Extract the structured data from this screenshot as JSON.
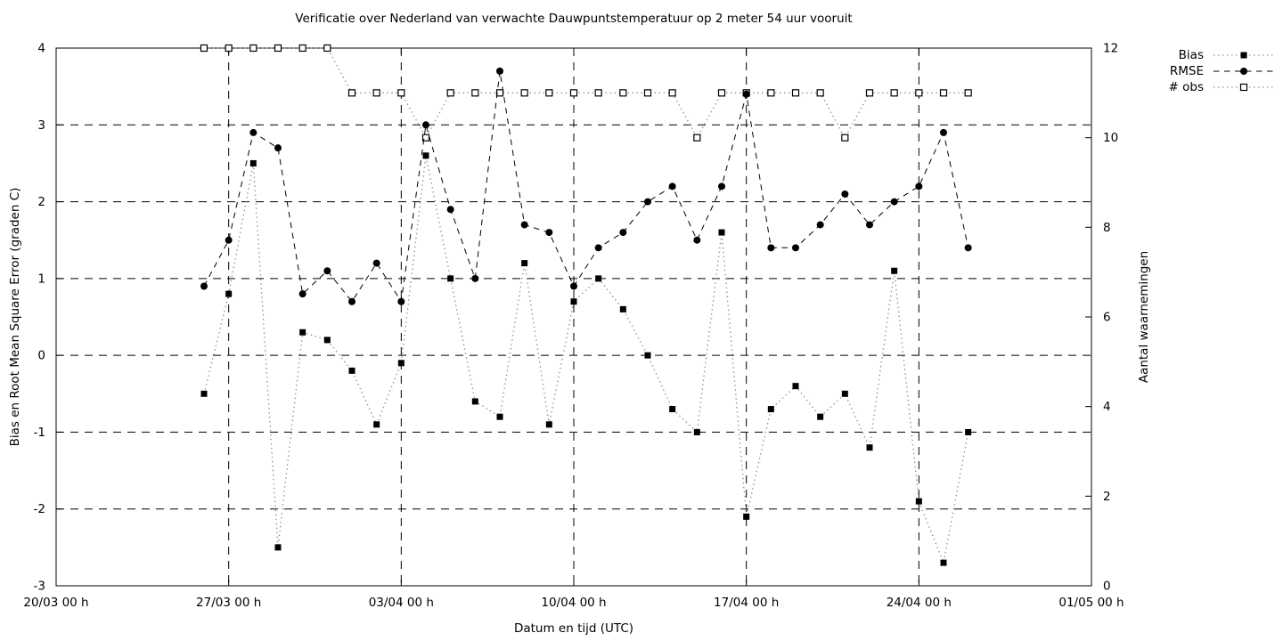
{
  "title": "Verificatie over Nederland van verwachte Dauwpuntstemperatuur op 2 meter 54 uur vooruit",
  "colors": {
    "foreground": "#000000",
    "background": "#ffffff",
    "dotted_series": "#8a8a8a"
  },
  "chart_data": {
    "type": "line",
    "title": "Verificatie over Nederland van verwachte Dauwpuntstemperatuur op 2 meter 54 uur vooruit",
    "grid": true,
    "legend_position": "top-right-outside",
    "x_axis": {
      "label": "Datum en tijd (UTC)",
      "tick_labels": [
        "20/03 00 h",
        "27/03 00 h",
        "03/04 00 h",
        "10/04 00 h",
        "17/04 00 h",
        "24/04 00 h",
        "01/05 00 h"
      ],
      "tick_days": [
        0,
        7,
        14,
        21,
        28,
        35,
        42
      ],
      "range_days": [
        0,
        42
      ]
    },
    "y_left": {
      "label": "Bias en Root Mean Square Error (graden C)",
      "ticks": [
        4,
        3,
        2,
        1,
        0,
        -1,
        -2,
        -3
      ],
      "grid_levels": [
        3,
        2,
        1,
        0,
        -1,
        -2
      ],
      "range": [
        -3,
        4
      ]
    },
    "y_right": {
      "label": "Aantal waarnemingen",
      "ticks": [
        0,
        2,
        4,
        6,
        8,
        10,
        12
      ],
      "range": [
        0,
        12
      ]
    },
    "x_dates": [
      "26/03",
      "27/03",
      "28/03",
      "29/03",
      "30/03",
      "31/03",
      "01/04",
      "02/04",
      "03/04",
      "04/04",
      "05/04",
      "06/04",
      "07/04",
      "08/04",
      "09/04",
      "10/04",
      "11/04",
      "12/04",
      "13/04",
      "14/04",
      "15/04",
      "16/04",
      "17/04",
      "18/04",
      "19/04",
      "20/04",
      "21/04",
      "22/04",
      "23/04",
      "24/04",
      "25/04",
      "26/04"
    ],
    "x_days": [
      6,
      7,
      8,
      9,
      10,
      11,
      12,
      13,
      14,
      15,
      16,
      17,
      18,
      19,
      20,
      21,
      22,
      23,
      24,
      25,
      26,
      27,
      28,
      29,
      30,
      31,
      32,
      33,
      34,
      35,
      36,
      37
    ],
    "series": [
      {
        "name": "Bias",
        "axis": "left",
        "marker": "filled-square",
        "line": "dotted",
        "values": [
          -0.5,
          0.8,
          2.5,
          -2.5,
          0.3,
          0.2,
          -0.2,
          -0.9,
          -0.1,
          2.6,
          1.0,
          -0.6,
          -0.8,
          1.2,
          -0.9,
          0.7,
          1.0,
          0.6,
          0.0,
          -0.7,
          -1.0,
          1.6,
          -2.1,
          -0.7,
          -0.4,
          -0.8,
          -0.5,
          -1.2,
          1.1,
          -1.9,
          -2.7,
          -1.0
        ]
      },
      {
        "name": "RMSE",
        "axis": "left",
        "marker": "filled-circle",
        "line": "dashed",
        "values": [
          0.9,
          1.5,
          2.9,
          2.7,
          0.8,
          1.1,
          0.7,
          1.2,
          0.7,
          3.0,
          1.9,
          1.0,
          3.7,
          1.7,
          1.6,
          0.9,
          1.4,
          1.6,
          2.0,
          2.2,
          1.5,
          2.2,
          3.4,
          1.4,
          1.4,
          1.7,
          2.1,
          1.7,
          2.0,
          2.2,
          2.9,
          1.4
        ]
      },
      {
        "name": "# obs",
        "axis": "right",
        "marker": "open-square",
        "line": "dotted",
        "values": [
          12,
          12,
          12,
          12,
          12,
          12,
          11,
          11,
          11,
          10,
          11,
          11,
          11,
          11,
          11,
          11,
          11,
          11,
          11,
          11,
          10,
          11,
          11,
          11,
          11,
          11,
          10,
          11,
          11,
          11,
          11,
          11
        ]
      }
    ]
  }
}
